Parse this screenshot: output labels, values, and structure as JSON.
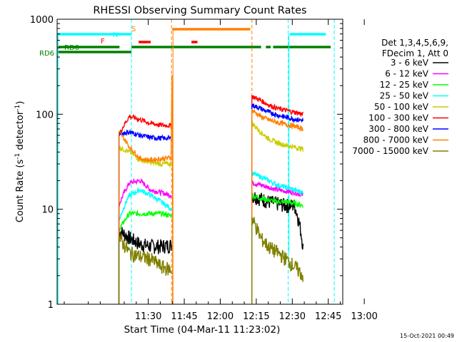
{
  "chart_data": {
    "type": "line",
    "title": "RHESSI Observing Summary Count Rates",
    "xlabel": "Start Time (04-Mar-11 11:23:02)",
    "ylabel_main": "Count Rate (s",
    "ylabel_sup1": "-1",
    "ylabel_mid": " detector",
    "ylabel_sup2": "-1",
    "ylabel_end": ")",
    "yscale": "log",
    "ylim": [
      1,
      1000
    ],
    "xlim_min": [
      -37.97,
      81.03
    ],
    "x_tick_labels": [
      "11:30",
      "11:45",
      "12:00",
      "12:15",
      "12:30",
      "12:45",
      "13:00"
    ],
    "x_tick_values_min": [
      0,
      15,
      30,
      45,
      60,
      75,
      90
    ],
    "y_tick_labels": [
      "1",
      "10",
      "100",
      "1000"
    ],
    "y_tick_values": [
      1,
      10,
      100,
      1000
    ],
    "legend_header": [
      "Det 1,3,4,5,6,9,",
      "FDecim 1, Att 0"
    ],
    "legend_position": "right",
    "timestamp": "15-Oct-2021 00:49",
    "flag_labels": [
      {
        "text": "F",
        "color": "#ff0000"
      },
      {
        "text": "N",
        "color": "#00ffff"
      },
      {
        "text": "S",
        "color": "#ff8000"
      },
      {
        "text": "RD0",
        "color": "#008000"
      },
      {
        "text": "RD6",
        "color": "#008000"
      }
    ],
    "flags": [
      {
        "name": "eclipse-night",
        "color": "#00ffff",
        "segments": [
          [
            -40,
            -7
          ],
          [
            59,
            74
          ]
        ]
      },
      {
        "name": "flare-flag",
        "color": "#ff0000",
        "segments": [
          [
            -4,
            0
          ],
          [
            0,
            1
          ],
          [
            18,
            20.5
          ]
        ]
      },
      {
        "name": "saa",
        "color": "#ff8000",
        "segments": [
          [
            10,
            42.5
          ]
        ]
      },
      {
        "name": "rd0",
        "color": "#008000",
        "segments": [
          [
            -38,
            -12
          ],
          [
            -7,
            47
          ],
          [
            49,
            51
          ],
          [
            52,
            76
          ]
        ]
      },
      {
        "name": "rd6",
        "color": "#008000",
        "segments": [
          [
            -38,
            -7
          ]
        ]
      }
    ],
    "vlines": [
      {
        "min": -7,
        "color": "#00ffff"
      },
      {
        "min": 9.7,
        "color": "#ff8000"
      },
      {
        "min": 43.2,
        "color": "#ff8000"
      },
      {
        "min": 58.3,
        "color": "#00ffff"
      },
      {
        "min": 77.5,
        "color": "#00ffff"
      }
    ],
    "intervals": [
      [
        -12.2,
        9.7
      ],
      [
        43.2,
        64.5
      ]
    ],
    "series": [
      {
        "name": "3 - 6 keV",
        "color": "#000000",
        "seg1": [
          6,
          5,
          4.3,
          4.1,
          4.1,
          4.2
        ],
        "seg2": [
          14,
          13,
          12,
          11.5,
          11,
          11,
          4
        ]
      },
      {
        "name": "6 - 12 keV",
        "color": "#ff00ff",
        "seg1": [
          11,
          19,
          20,
          16,
          15,
          14
        ],
        "seg2": [
          19,
          18,
          17,
          16,
          15.5,
          15,
          14
        ]
      },
      {
        "name": "12 - 25 keV",
        "color": "#00ff00",
        "seg1": [
          6,
          9,
          9,
          9,
          9,
          8.5
        ],
        "seg2": [
          14,
          13,
          12.5,
          12,
          12,
          11.5,
          11
        ]
      },
      {
        "name": "25 - 50 keV",
        "color": "#00ffff",
        "seg1": [
          7.5,
          14,
          16,
          14,
          12,
          10
        ],
        "seg2": [
          24,
          22,
          20,
          18,
          17,
          16,
          15
        ]
      },
      {
        "name": "50 - 100 keV",
        "color": "#cccc00",
        "seg1": [
          45,
          40,
          33,
          31,
          30,
          30
        ],
        "seg2": [
          80,
          65,
          55,
          50,
          47,
          45,
          43
        ]
      },
      {
        "name": "100 - 300 keV",
        "color": "#ff0000",
        "seg1": [
          60,
          95,
          88,
          80,
          77,
          76
        ],
        "seg2": [
          155,
          140,
          125,
          115,
          110,
          105,
          100
        ]
      },
      {
        "name": "300 - 800 keV",
        "color": "#0000ff",
        "seg1": [
          62,
          65,
          60,
          57,
          56,
          56
        ],
        "seg2": [
          125,
          115,
          105,
          98,
          93,
          89,
          86
        ]
      },
      {
        "name": "800 - 7000 keV",
        "color": "#ff8000",
        "seg1": [
          65,
          45,
          34,
          33,
          34,
          35
        ],
        "seg2": [
          110,
          95,
          87,
          82,
          78,
          75,
          70
        ]
      },
      {
        "name": "7000 - 15000 keV",
        "color": "#808000",
        "seg1": [
          5,
          3.5,
          3.2,
          3.0,
          2.5,
          2.3
        ],
        "seg2": [
          8,
          5,
          4,
          3.5,
          3,
          2.5,
          2
        ]
      }
    ]
  }
}
